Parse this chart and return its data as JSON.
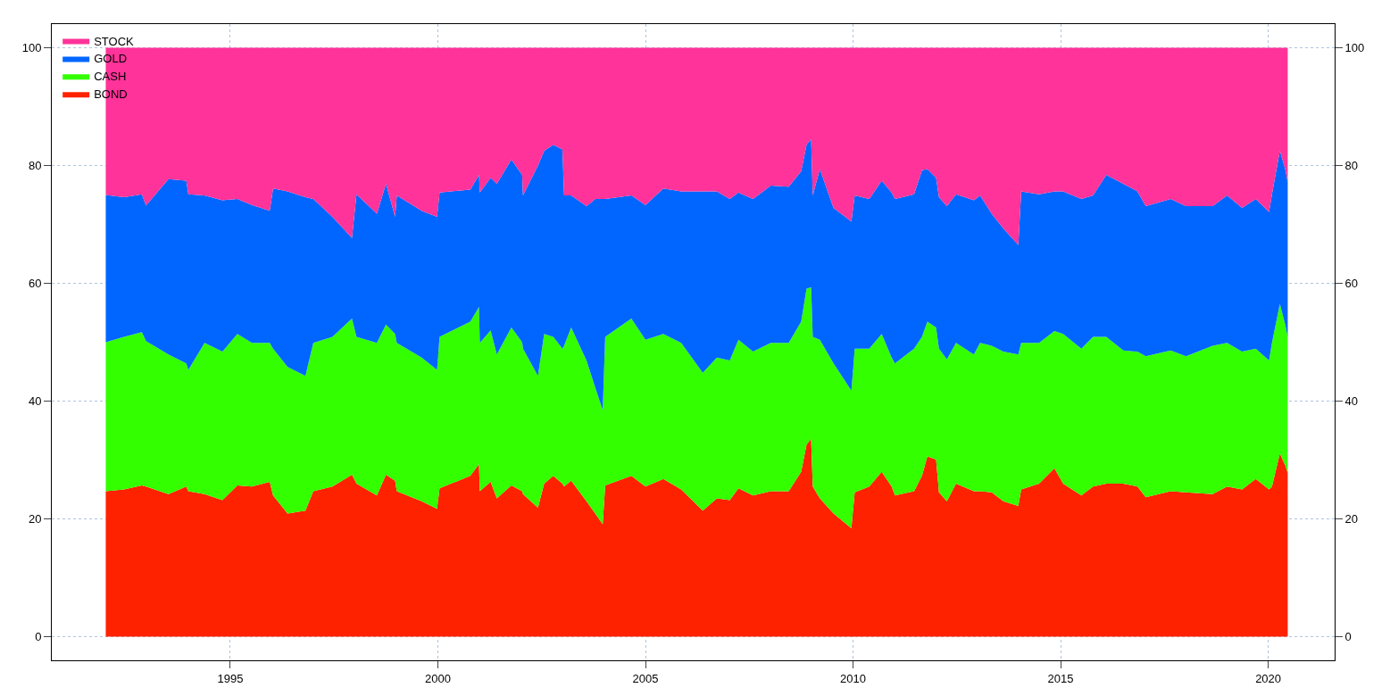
{
  "chart_data": {
    "type": "area",
    "stacked": true,
    "x": [
      1992.0,
      1992.44,
      1992.87,
      1992.97,
      1993.51,
      1993.94,
      1993.99,
      1994.38,
      1994.81,
      1995.17,
      1995.52,
      1995.95,
      1996.03,
      1996.38,
      1996.81,
      1997.0,
      1997.46,
      1997.93,
      1998.04,
      1998.53,
      1998.75,
      1998.97,
      1999.01,
      1999.61,
      1999.98,
      2000.04,
      2000.78,
      2000.99,
      2001.01,
      2001.27,
      2001.42,
      2001.77,
      2002.03,
      2002.05,
      2002.41,
      2002.56,
      2002.78,
      2003.0,
      2003.04,
      2003.21,
      2003.58,
      2003.79,
      2003.97,
      2004.03,
      2004.66,
      2005.0,
      2005.43,
      2005.86,
      2006.38,
      2006.72,
      2007.03,
      2007.24,
      2007.59,
      2008.02,
      2008.45,
      2008.75,
      2008.88,
      2008.99,
      2009.03,
      2009.2,
      2009.53,
      2009.96,
      2010.04,
      2010.39,
      2010.69,
      2010.93,
      2011.01,
      2011.47,
      2011.66,
      2011.79,
      2012.0,
      2012.07,
      2012.26,
      2012.48,
      2012.91,
      2013.06,
      2013.34,
      2013.62,
      2013.98,
      2014.05,
      2014.48,
      2014.85,
      2015.06,
      2015.5,
      2015.78,
      2016.1,
      2016.51,
      2016.85,
      2017.05,
      2017.65,
      2018.02,
      2018.66,
      2019.01,
      2019.37,
      2019.7,
      2020.02,
      2020.09,
      2020.28,
      2020.41,
      2020.47
    ],
    "series": [
      {
        "name": "BOND",
        "color": "#ff2200",
        "values": [
          24.7,
          25.0,
          25.7,
          25.5,
          24.2,
          25.5,
          24.7,
          24.2,
          23.2,
          25.7,
          25.5,
          26.3,
          24.0,
          20.9,
          21.4,
          24.7,
          25.5,
          27.5,
          26.0,
          24.0,
          27.5,
          26.5,
          24.7,
          23.0,
          21.7,
          25.2,
          27.3,
          29.3,
          24.7,
          26.3,
          23.5,
          25.7,
          24.7,
          24.2,
          21.9,
          26.0,
          27.3,
          26.0,
          25.5,
          26.5,
          23.0,
          20.9,
          19.1,
          25.7,
          27.3,
          25.5,
          26.8,
          25.0,
          21.4,
          23.5,
          23.2,
          25.2,
          24.0,
          24.7,
          24.7,
          28.0,
          32.6,
          33.6,
          25.5,
          23.5,
          20.9,
          18.4,
          24.5,
          25.5,
          28.0,
          25.5,
          24.0,
          24.7,
          27.3,
          30.6,
          30.1,
          24.5,
          23.0,
          26.0,
          24.7,
          24.7,
          24.5,
          23.0,
          22.2,
          25.0,
          26.0,
          28.6,
          26.0,
          24.0,
          25.5,
          26.0,
          26.0,
          25.5,
          23.7,
          24.7,
          24.5,
          24.2,
          25.5,
          25.0,
          26.8,
          25.0,
          25.5,
          31.1,
          29.1,
          27.8
        ]
      },
      {
        "name": "CASH",
        "color": "#33ff00",
        "values": [
          25.3,
          25.9,
          26.0,
          24.7,
          23.7,
          20.9,
          20.6,
          25.7,
          25.2,
          25.7,
          24.4,
          23.6,
          24.9,
          24.9,
          22.9,
          25.2,
          25.4,
          26.5,
          24.9,
          25.9,
          25.5,
          24.9,
          25.2,
          24.4,
          23.6,
          25.7,
          26.2,
          26.7,
          25.2,
          25.7,
          24.4,
          26.8,
          25.3,
          24.7,
          22.4,
          25.4,
          23.6,
          22.9,
          23.9,
          26.0,
          23.9,
          21.4,
          19.4,
          25.2,
          26.7,
          24.9,
          24.6,
          24.9,
          23.4,
          23.9,
          23.7,
          25.2,
          24.4,
          25.2,
          25.2,
          25.5,
          26.5,
          25.7,
          25.4,
          26.9,
          25.5,
          23.4,
          24.4,
          23.4,
          23.4,
          21.9,
          22.4,
          24.2,
          23.6,
          22.9,
          22.4,
          24.4,
          24.1,
          23.9,
          23.2,
          25.2,
          24.9,
          25.4,
          25.7,
          24.9,
          23.9,
          23.3,
          25.4,
          24.9,
          25.4,
          24.9,
          22.6,
          22.9,
          23.9,
          23.9,
          23.1,
          25.2,
          24.4,
          23.4,
          22.1,
          21.9,
          24.4,
          25.4,
          23.9,
          23.1
        ]
      },
      {
        "name": "GOLD",
        "color": "#0066ff",
        "values": [
          25.0,
          23.7,
          23.4,
          23.0,
          29.8,
          31.0,
          29.8,
          25.0,
          25.7,
          22.9,
          23.4,
          22.4,
          27.2,
          29.8,
          30.3,
          24.4,
          20.4,
          13.7,
          24.2,
          21.9,
          23.9,
          19.9,
          25.0,
          24.9,
          26.0,
          24.5,
          22.4,
          22.4,
          25.5,
          25.9,
          29.0,
          28.5,
          28.4,
          26.0,
          35.7,
          31.1,
          32.6,
          33.8,
          25.5,
          22.4,
          26.2,
          32.0,
          35.8,
          23.4,
          20.9,
          22.9,
          24.7,
          25.7,
          30.8,
          28.2,
          27.4,
          25.0,
          25.9,
          26.7,
          26.5,
          25.5,
          24.4,
          25.2,
          24.0,
          29.0,
          26.4,
          28.7,
          26.0,
          25.4,
          26.0,
          28.0,
          27.9,
          26.2,
          28.3,
          25.9,
          25.4,
          25.7,
          26.0,
          25.2,
          26.2,
          25.0,
          22.4,
          20.9,
          18.6,
          25.7,
          25.2,
          23.7,
          24.2,
          25.4,
          24.0,
          27.5,
          28.3,
          27.2,
          25.5,
          25.7,
          25.5,
          23.7,
          25.0,
          24.4,
          25.4,
          25.2,
          25.2,
          26.0,
          26.4,
          26.3
        ]
      },
      {
        "name": "STOCK",
        "color": "#ff3399",
        "values": [
          25.0,
          25.4,
          24.9,
          26.8,
          22.3,
          22.6,
          24.9,
          25.1,
          25.9,
          25.7,
          26.7,
          27.7,
          23.9,
          24.4,
          25.4,
          25.7,
          28.7,
          32.3,
          24.9,
          28.2,
          23.1,
          28.7,
          25.1,
          27.7,
          28.7,
          24.6,
          24.1,
          21.6,
          24.6,
          22.1,
          23.1,
          19.0,
          21.6,
          25.1,
          20.0,
          17.5,
          16.5,
          17.3,
          25.1,
          25.1,
          26.9,
          25.7,
          25.7,
          25.7,
          25.1,
          26.7,
          23.9,
          24.4,
          24.4,
          24.4,
          25.7,
          24.6,
          25.7,
          23.4,
          23.6,
          21.0,
          16.5,
          15.5,
          25.1,
          20.6,
          27.2,
          29.5,
          25.1,
          25.7,
          22.6,
          24.6,
          25.7,
          24.9,
          20.8,
          20.6,
          22.1,
          25.4,
          26.9,
          24.9,
          25.9,
          25.1,
          28.2,
          30.7,
          33.5,
          24.4,
          24.9,
          24.4,
          24.4,
          25.7,
          25.1,
          21.6,
          23.1,
          24.4,
          26.9,
          25.7,
          26.9,
          26.9,
          25.1,
          27.2,
          25.7,
          27.9,
          24.9,
          17.5,
          20.6,
          22.8
        ]
      }
    ],
    "xlim": [
      1990.7,
      2021.6
    ],
    "xticks": [
      1995,
      2000,
      2005,
      2010,
      2015,
      2020
    ],
    "ylim": [
      -4,
      104
    ],
    "yticks": [
      0,
      20,
      40,
      60,
      80,
      100
    ],
    "y2lim": [
      -4,
      104
    ],
    "y2ticks": [
      0,
      20,
      40,
      60,
      80,
      100
    ],
    "grid": true,
    "legend": "top left"
  }
}
